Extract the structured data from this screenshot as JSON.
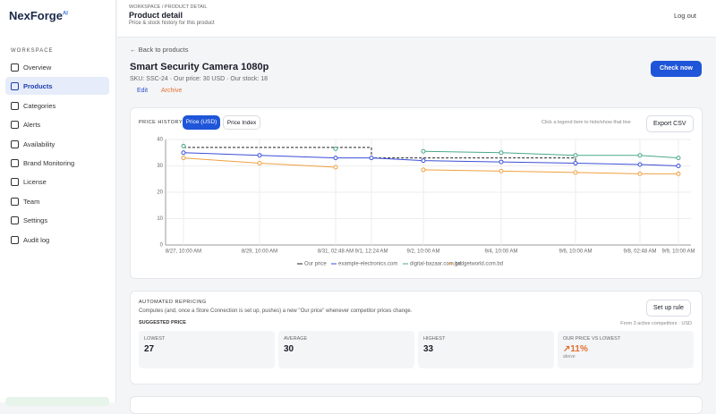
{
  "brand": {
    "name": "NexForge",
    "sup": "AI"
  },
  "sidebar": {
    "section": "WORKSPACE",
    "items": [
      "Overview",
      "Products",
      "Categories",
      "Alerts",
      "Availability",
      "Brand Monitoring",
      "License",
      "Team",
      "Settings",
      "Audit log"
    ]
  },
  "header": {
    "breadcrumb": "WORKSPACE / PRODUCT DETAIL",
    "title": "Product detail",
    "subtitle": "Price & stock history for this product",
    "logout": "Log out"
  },
  "product": {
    "back": "← Back to products",
    "name": "Smart Security Camera 1080p",
    "meta": "SKU: SSC-24 · Our price: 30 USD · Our stock: 18",
    "edit": "Edit",
    "archive": "Archive",
    "check": "Check now"
  },
  "history": {
    "label": "PRICE HISTORY",
    "tabs": [
      "Price (USD)",
      "Price Index"
    ],
    "hint": "Click a legend item to hide/show that line",
    "export": "Export CSV"
  },
  "chart_data": {
    "type": "line",
    "categories": [
      "8/27, 10:00 AM",
      "8/29, 10:00 AM",
      "8/31, 02:48 AM",
      "9/1, 12:24 AM",
      "9/2, 10:00 AM",
      "9/4, 10:00 AM",
      "9/6, 10:00 AM",
      "9/8, 02:48 AM",
      "9/9, 10:00 AM"
    ],
    "ylim": [
      0,
      40
    ],
    "yticks": [
      0,
      10,
      20,
      30,
      40
    ],
    "grid": true,
    "series": [
      {
        "name": "Our price",
        "color": "#222222",
        "values": [
          37,
          37,
          37,
          33,
          33,
          33,
          30,
          null,
          null
        ]
      },
      {
        "name": "example-electronics.com",
        "color": "#3b4fd8",
        "values": [
          35,
          34,
          33,
          33,
          32,
          31.5,
          31,
          30.5,
          30
        ]
      },
      {
        "name": "digital-bazaar.com.bd",
        "color": "#4aa88c",
        "values": [
          37.5,
          null,
          36.5,
          null,
          35.5,
          35,
          34,
          34,
          33
        ]
      },
      {
        "name": "gadgetworld.com.bd",
        "color": "#f0a040",
        "values": [
          33,
          31,
          29.5,
          null,
          28.5,
          28,
          27.5,
          27,
          27
        ]
      }
    ]
  },
  "repricing": {
    "label": "AUTOMATED REPRICING",
    "desc": "Computes (and, once a Store Connection is set up, pushes) a new \"Our price\" whenever competitor prices change.",
    "setup": "Set up rule",
    "suggested": "SUGGESTED PRICE",
    "from": "From 3 active competitors · USD",
    "cards": [
      {
        "k": "LOWEST",
        "v": "27"
      },
      {
        "k": "AVERAGE",
        "v": "30"
      },
      {
        "k": "HIGHEST",
        "v": "33"
      },
      {
        "k": "OUR PRICE VS LOWEST",
        "v": "↗11%",
        "s": "above"
      }
    ]
  }
}
